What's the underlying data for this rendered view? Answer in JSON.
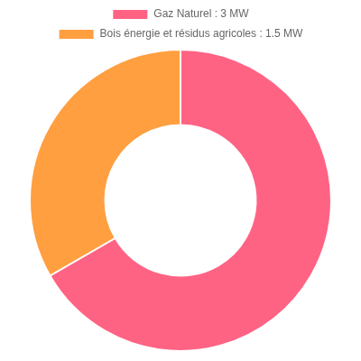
{
  "chart_data": {
    "type": "doughnut",
    "categories": [
      "Gaz Naturel : 3 MW",
      "Bois énergie et résidus agricoles : 1.5 MW"
    ],
    "values": [
      3,
      1.5
    ],
    "colors": [
      "#ff6384",
      "#ff9f40"
    ],
    "legend": "top"
  }
}
